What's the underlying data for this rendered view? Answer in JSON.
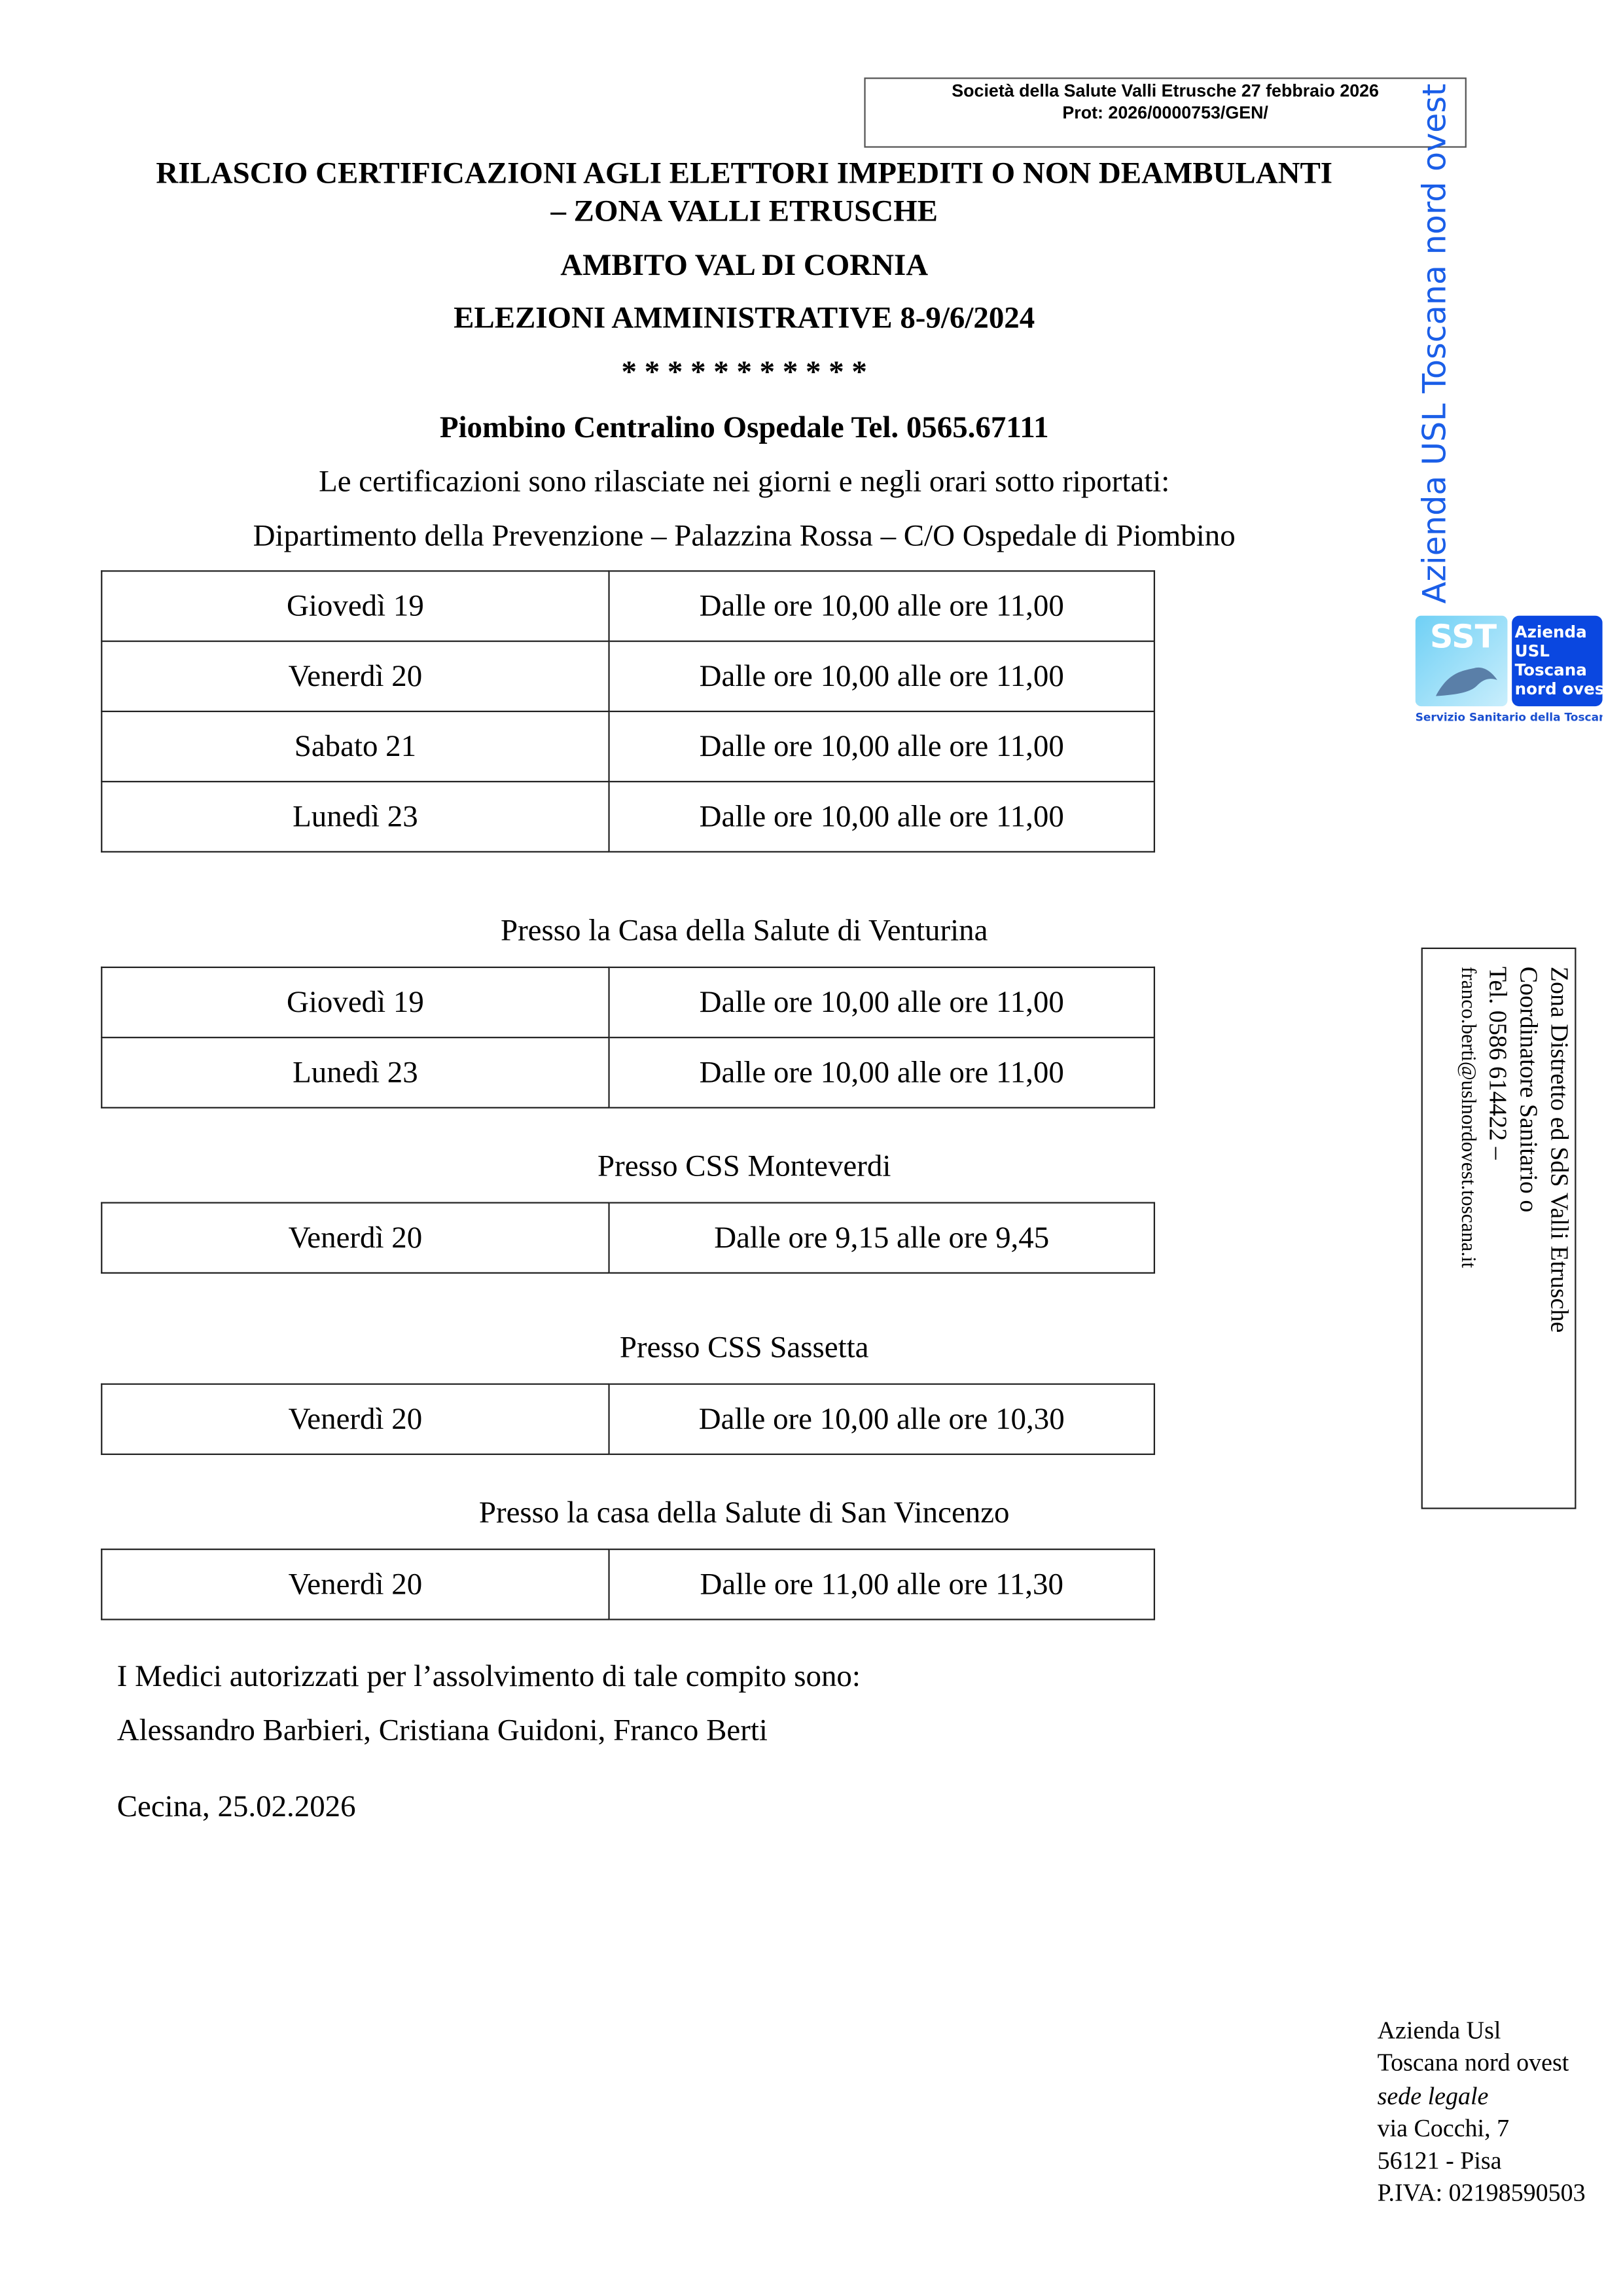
{
  "stamp": {
    "line1": "Società della Salute Valli Etrusche 27 febbraio 2026",
    "line2": "Prot: 2026/0000753/GEN/"
  },
  "header": {
    "title1": "RILASCIO CERTIFICAZIONI AGLI ELETTORI IMPEDITI O NON DEAMBULANTI",
    "title2": "– ZONA VALLI ETRUSCHE",
    "title3": "AMBITO VAL DI CORNIA",
    "title4": "ELEZIONI AMMINISTRATIVE 8-9/6/2024",
    "stars": "* * * * * * * * * * *",
    "phone": "Piombino Centralino Ospedale Tel. 0565.67111",
    "intro": "Le certificazioni sono rilasciate nei giorni e negli orari sotto riportati:"
  },
  "sections": [
    {
      "title": "Dipartimento della Prevenzione – Palazzina Rossa – C/O Ospedale di Piombino",
      "rows": [
        [
          "Giovedì  19",
          "Dalle ore 10,00 alle ore 11,00"
        ],
        [
          "Venerdì 20",
          "Dalle ore 10,00 alle ore 11,00"
        ],
        [
          "Sabato 21",
          "Dalle ore 10,00 alle ore 11,00"
        ],
        [
          "Lunedì 23",
          "Dalle ore 10,00 alle ore 11,00"
        ]
      ]
    },
    {
      "title": "Presso la Casa della Salute di Venturina",
      "rows": [
        [
          "Giovedì 19",
          "Dalle ore 10,00 alle ore 11,00"
        ],
        [
          "Lunedì 23",
          "Dalle ore 10,00 alle ore 11,00"
        ]
      ]
    },
    {
      "title": "Presso CSS Monteverdi",
      "rows": [
        [
          "Venerdì 20",
          "Dalle ore 9,15 alle ore 9,45"
        ]
      ]
    },
    {
      "title": "Presso CSS Sassetta",
      "rows": [
        [
          "Venerdì 20",
          "Dalle ore 10,00 alle ore 10,30"
        ]
      ]
    },
    {
      "title": "Presso la casa della Salute di San Vincenzo",
      "rows": [
        [
          "Venerdì 20",
          "Dalle ore 11,00 alle ore 11,30"
        ]
      ]
    }
  ],
  "closing": {
    "doctors_intro": "I  Medici autorizzati per l’assolvimento di tale compito sono:",
    "doctors": "Alessandro Barbieri, Cristiana Guidoni, Franco Berti",
    "place_date": "Cecina, 25.02.2026"
  },
  "brand": {
    "vertical": "Azienda USL Toscana nord ovest",
    "color": "#1a5ee8",
    "logo_sst": "SST",
    "logo_lines": [
      "Azienda",
      "USL",
      "Toscana",
      "nord ovest"
    ],
    "logo_caption": "Servizio Sanitario della Toscana"
  },
  "sidebox": {
    "line1": "Zona Distretto ed SdS Valli Etrusche",
    "line2": "Coordinatore Sanitario o",
    "line3": "Tel. 0586 614422 –",
    "email": "franco.berti@uslnordovest.toscana.it"
  },
  "footer": {
    "l1": "Azienda Usl",
    "l2": "Toscana nord ovest",
    "l3": "sede legale",
    "l4": "via Cocchi, 7",
    "l5": "56121 - Pisa",
    "l6": "P.IVA: 02198590503"
  }
}
